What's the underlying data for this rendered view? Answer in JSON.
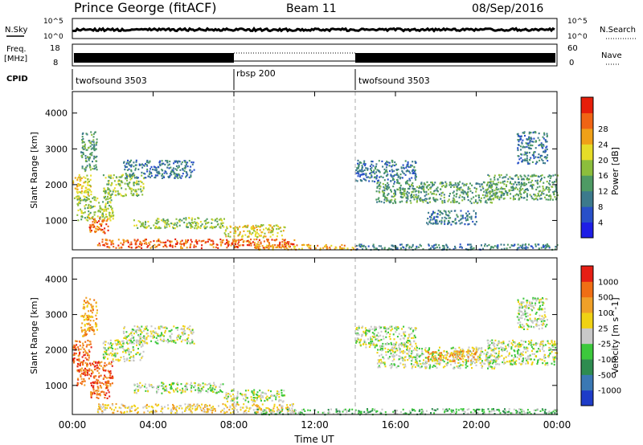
{
  "header": {
    "station": "Prince George (fitACF)",
    "beam": "Beam 11",
    "date": "08/Sep/2016"
  },
  "info_panels": {
    "nsky_label": "N.Sky",
    "nsearch_label": "N.Search",
    "nsky_ticks": [
      "10^5",
      "10^0"
    ],
    "nsearch_ticks": [
      "10^5",
      "10^0"
    ],
    "freq_label_1": "Freq.",
    "freq_label_2": "[MHz]",
    "freq_ticks": [
      "18",
      "8"
    ],
    "nave_label": "Nave",
    "nave_ticks": [
      "60",
      "0"
    ],
    "cpid_label": "CPID",
    "cpid_segments": [
      {
        "name": "twofsound 3503",
        "start_hour": 0,
        "end_hour": 8
      },
      {
        "name": "rbsp 200",
        "start_hour": 8,
        "end_hour": 14
      },
      {
        "name": "twofsound 3503",
        "start_hour": 14,
        "end_hour": 24
      }
    ]
  },
  "chart_data": [
    {
      "type": "heatmap",
      "title": "Power",
      "xlabel": "Time UT",
      "ylabel": "Slant Range [km]",
      "x_ticks": [
        "00:00",
        "04:00",
        "08:00",
        "12:00",
        "16:00",
        "20:00",
        "00:00"
      ],
      "xlim_hours": [
        0,
        24
      ],
      "y_ticks": [
        1000,
        2000,
        3000,
        4000
      ],
      "ylim_km": [
        180,
        4600
      ],
      "colorbar": {
        "label": "Power [dB]",
        "ticks": [
          "4",
          "8",
          "12",
          "16",
          "20",
          "24",
          "28"
        ],
        "colors": [
          "#1e1ee6",
          "#2850c8",
          "#3c7a8c",
          "#4e9a64",
          "#8cbe3c",
          "#e6dc28",
          "#f0a018",
          "#f06414",
          "#e61e0a"
        ]
      },
      "regions": [
        {
          "t0": 0.0,
          "t1": 0.9,
          "r0": 1600,
          "r1": 2300,
          "level": 5
        },
        {
          "t0": 0.2,
          "t1": 2.0,
          "r0": 1000,
          "r1": 1700,
          "level": 4
        },
        {
          "t0": 0.8,
          "t1": 1.8,
          "r0": 650,
          "r1": 1100,
          "level": 7
        },
        {
          "t0": 0.4,
          "t1": 1.2,
          "r0": 2400,
          "r1": 3500,
          "level": 3
        },
        {
          "t0": 1.5,
          "t1": 3.5,
          "r0": 1700,
          "r1": 2300,
          "level": 4
        },
        {
          "t0": 2.5,
          "t1": 6.0,
          "r0": 2200,
          "r1": 2700,
          "level": 2
        },
        {
          "t0": 3.0,
          "t1": 7.5,
          "r0": 800,
          "r1": 1100,
          "level": 4
        },
        {
          "t0": 7.5,
          "t1": 10.5,
          "r0": 550,
          "r1": 900,
          "level": 5
        },
        {
          "t0": 1.2,
          "t1": 11.0,
          "r0": 250,
          "r1": 500,
          "level": 7
        },
        {
          "t0": 9.0,
          "t1": 14.0,
          "r0": 200,
          "r1": 350,
          "level": 6
        },
        {
          "t0": 14.0,
          "t1": 24.0,
          "r0": 200,
          "r1": 360,
          "level": 2
        },
        {
          "t0": 14.0,
          "t1": 17.0,
          "r0": 2100,
          "r1": 2700,
          "level": 2
        },
        {
          "t0": 15.0,
          "t1": 21.0,
          "r0": 1500,
          "r1": 2100,
          "level": 3
        },
        {
          "t0": 17.5,
          "t1": 20.0,
          "r0": 900,
          "r1": 1300,
          "level": 2
        },
        {
          "t0": 20.5,
          "t1": 24.0,
          "r0": 1600,
          "r1": 2300,
          "level": 3
        },
        {
          "t0": 22.0,
          "t1": 23.5,
          "r0": 2600,
          "r1": 3500,
          "level": 2
        }
      ]
    },
    {
      "type": "heatmap",
      "title": "Velocity",
      "xlabel": "Time UT",
      "ylabel": "Slant Range [km]",
      "x_ticks": [
        "00:00",
        "04:00",
        "08:00",
        "12:00",
        "16:00",
        "20:00",
        "00:00"
      ],
      "xlim_hours": [
        0,
        24
      ],
      "y_ticks": [
        1000,
        2000,
        3000,
        4000
      ],
      "ylim_km": [
        180,
        4600
      ],
      "colorbar": {
        "label": "Velocity [m s^-1]",
        "ticks": [
          "1000",
          "500",
          "100",
          "25",
          "-25",
          "-100",
          "-500",
          "-1000"
        ],
        "colors": [
          "#1e3cc8",
          "#3a78b4",
          "#2e8c50",
          "#3cc83c",
          "#c8c8c8",
          "#f0d214",
          "#f0a028",
          "#f06e14",
          "#e61e14"
        ]
      },
      "regions": [
        {
          "t0": 0.0,
          "t1": 0.9,
          "r0": 1600,
          "r1": 2300,
          "level": 7
        },
        {
          "t0": 0.2,
          "t1": 2.0,
          "r0": 1000,
          "r1": 1700,
          "level": 7
        },
        {
          "t0": 0.8,
          "t1": 1.8,
          "r0": 650,
          "r1": 1100,
          "level": 7
        },
        {
          "t0": 0.4,
          "t1": 1.2,
          "r0": 2400,
          "r1": 3500,
          "level": 6
        },
        {
          "t0": 1.5,
          "t1": 3.5,
          "r0": 1700,
          "r1": 2300,
          "level": 4
        },
        {
          "t0": 2.5,
          "t1": 6.0,
          "r0": 2200,
          "r1": 2700,
          "level": 4
        },
        {
          "t0": 3.0,
          "t1": 7.5,
          "r0": 800,
          "r1": 1100,
          "level": 4
        },
        {
          "t0": 7.5,
          "t1": 10.5,
          "r0": 550,
          "r1": 900,
          "level": 4
        },
        {
          "t0": 1.2,
          "t1": 11.0,
          "r0": 250,
          "r1": 500,
          "level": 5
        },
        {
          "t0": 9.0,
          "t1": 14.0,
          "r0": 200,
          "r1": 350,
          "level": 3
        },
        {
          "t0": 14.0,
          "t1": 24.0,
          "r0": 200,
          "r1": 360,
          "level": 3
        },
        {
          "t0": 14.0,
          "t1": 17.0,
          "r0": 2100,
          "r1": 2700,
          "level": 4
        },
        {
          "t0": 15.0,
          "t1": 21.0,
          "r0": 1500,
          "r1": 2100,
          "level": 4
        },
        {
          "t0": 17.5,
          "t1": 20.0,
          "r0": 1700,
          "r1": 2000,
          "level": 6
        },
        {
          "t0": 20.5,
          "t1": 24.0,
          "r0": 1600,
          "r1": 2300,
          "level": 4
        },
        {
          "t0": 22.0,
          "t1": 23.5,
          "r0": 2600,
          "r1": 3500,
          "level": 4
        }
      ]
    }
  ]
}
